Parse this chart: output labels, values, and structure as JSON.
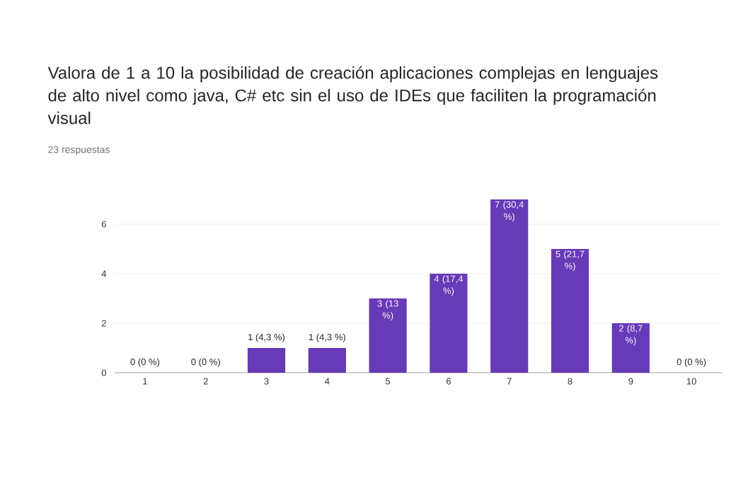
{
  "chart_data": {
    "type": "bar",
    "title": "Valora de 1 a 10 la posibilidad de creación aplicaciones complejas en lenguajes de alto nivel como java, C# etc sin el uso de IDEs que faciliten la programación visual",
    "subtitle": "23 respuestas",
    "categories": [
      "1",
      "2",
      "3",
      "4",
      "5",
      "6",
      "7",
      "8",
      "9",
      "10"
    ],
    "values": [
      0,
      0,
      1,
      1,
      3,
      4,
      7,
      5,
      2,
      0
    ],
    "value_labels": [
      "0 (0 %)",
      "0 (0 %)",
      "1 (4,3 %)",
      "1 (4,3 %)",
      "3 (13 %)",
      "4 (17,4 %)",
      "7 (30,4 %)",
      "5 (21,7 %)",
      "2 (8,7 %)",
      "0 (0 %)"
    ],
    "color": "#673ab7",
    "ylim": [
      0,
      7
    ],
    "yticks": [
      0,
      2,
      4,
      6
    ],
    "grid": "y"
  }
}
